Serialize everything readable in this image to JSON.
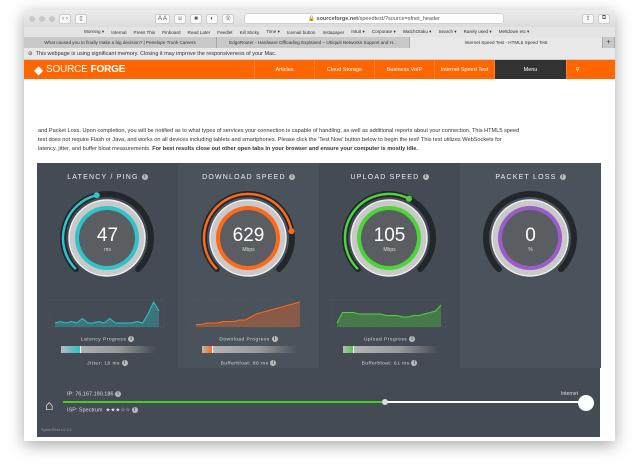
{
  "browser": {
    "url_domain": "sourceforge.net",
    "url_path": "/speedtest/?source=sfnet_header",
    "bookmarks": [
      "Morning ▾",
      "Internal",
      "Press This",
      "Pinboard",
      "Read Later",
      "Feedlet",
      "Kill Sticky",
      "Time ▾",
      "Icemail button",
      "Instapaper",
      "Intuit ▾",
      "Corporate ▾",
      "WatchOtaku ▾",
      "Search ▾",
      "Rarely used ▾",
      "Meltdown etc ▾"
    ],
    "tabs": [
      "What caused you to finally make a big decision? | Penelope Trunk Careers",
      "EdgeRouter - Hardware Offloading Explained – Ubiquiti Networks Support and H...",
      "Internet Speed Test - HTML5 Speed Test"
    ],
    "warning": "This webpage is using significant memory. Closing it may improve the responsiveness of your Mac."
  },
  "site": {
    "logo_light": "SOURCE",
    "logo_bold": "FORGE",
    "nav": [
      "Articles",
      "Cloud Storage",
      "Business VoIP",
      "Internet Speed Test"
    ],
    "menu": "Menu"
  },
  "intro": {
    "line1": "and Packet Loss. Upon completion, you will be notified as to what types of services your connection is capable of handling, as well as additional reports about your connection. This HTML5 speed",
    "line2": "test does not require Flash or Java, and works on all devices including tablets and smartphones. Please click the 'Test Now' button below to begin the test! This test utilizes WebSockets for",
    "line3": "latency, jitter, and buffer bloat measurements. ",
    "bold": "For best results close out other open tabs in your browser and ensure your computer is mostly idle."
  },
  "gauges": [
    {
      "title": "LATENCY / PING",
      "value": "47",
      "unit": "ms",
      "color": "#2ec4c8",
      "fill": 0.45,
      "progress_label": "Latency Progress",
      "progress": 0.2,
      "sub": "Jitter: 16 ms"
    },
    {
      "title": "DOWNLOAD SPEED",
      "value": "629",
      "unit": "Mbps",
      "color": "#ff6a1a",
      "fill": 0.8,
      "progress_label": "Download Progress",
      "progress": 0.1,
      "sub": "Bufferbloat: 86 ms"
    },
    {
      "title": "UPLOAD SPEED",
      "value": "105",
      "unit": "Mbps",
      "color": "#4cd43a",
      "fill": 0.6,
      "progress_label": "Upload Progress",
      "progress": 0.1,
      "sub": "Bufferbloat: 61 ms"
    },
    {
      "title": "PACKET LOSS",
      "value": "0",
      "unit": "%",
      "color": "#9a5cc8",
      "fill": 0
    }
  ],
  "sparks": [
    [
      2,
      3,
      2,
      3,
      2,
      5,
      2,
      2,
      3,
      2,
      5,
      2,
      2,
      2,
      2,
      3,
      2,
      8,
      16,
      10
    ],
    [
      1,
      1,
      2,
      2,
      2,
      3,
      3,
      3,
      4,
      4,
      6,
      8,
      9,
      10,
      11,
      12,
      13,
      14,
      15,
      16
    ],
    [
      2,
      9,
      9,
      9,
      8,
      8,
      8,
      8,
      8,
      7,
      7,
      7,
      6,
      6,
      7,
      7,
      8,
      9,
      10,
      14
    ]
  ],
  "footer": {
    "ip": "IP: 76.167.190.186",
    "isp": "ISP: Spectrum",
    "stars": "★★★☆☆",
    "internet": "Internet",
    "version": "SpeedTest v1.3.1",
    "line_progress": 0.62
  }
}
